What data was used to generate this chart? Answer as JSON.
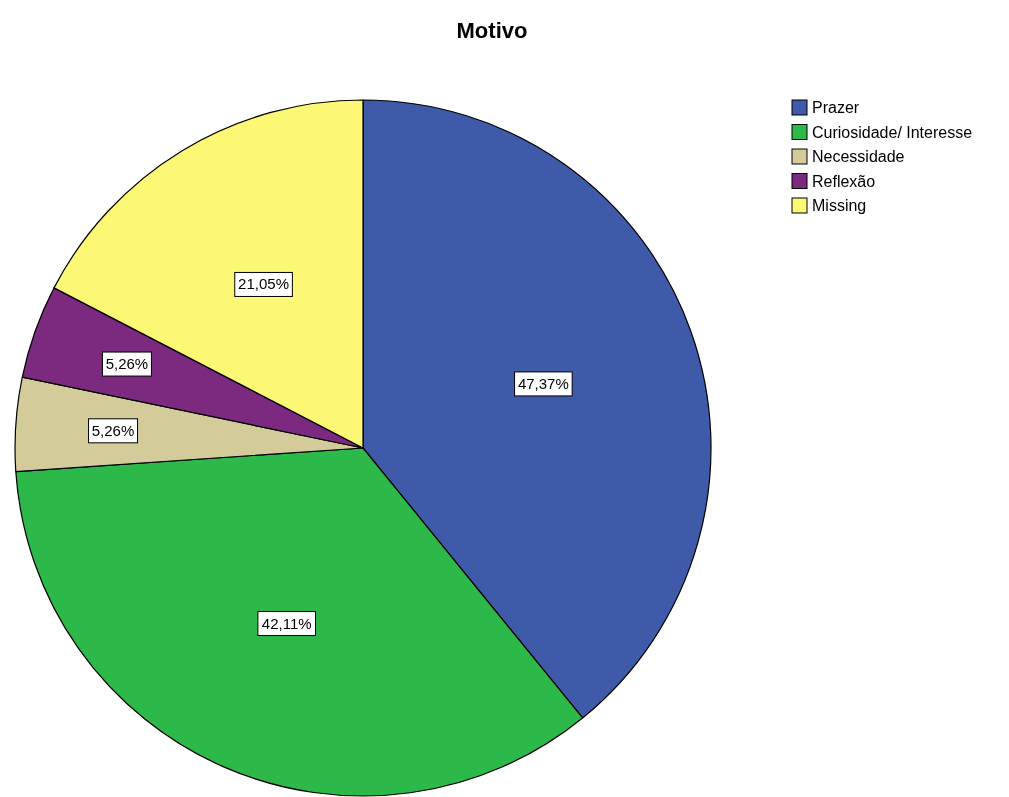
{
  "chart_data": {
    "type": "pie",
    "title": "Motivo",
    "categories": [
      "Prazer",
      "Curiosidade/ Interesse",
      "Necessidade",
      "Reflexão",
      "Missing"
    ],
    "values": [
      47.37,
      42.11,
      5.26,
      5.26,
      21.05
    ],
    "colors": [
      "#3f5aa9",
      "#2db84a",
      "#d3cc9a",
      "#7b2a7f",
      "#fcf775"
    ],
    "value_labels": [
      "47,37%",
      "42,11%",
      "5,26%",
      "5,26%",
      "21,05%"
    ],
    "legend": "top right"
  }
}
